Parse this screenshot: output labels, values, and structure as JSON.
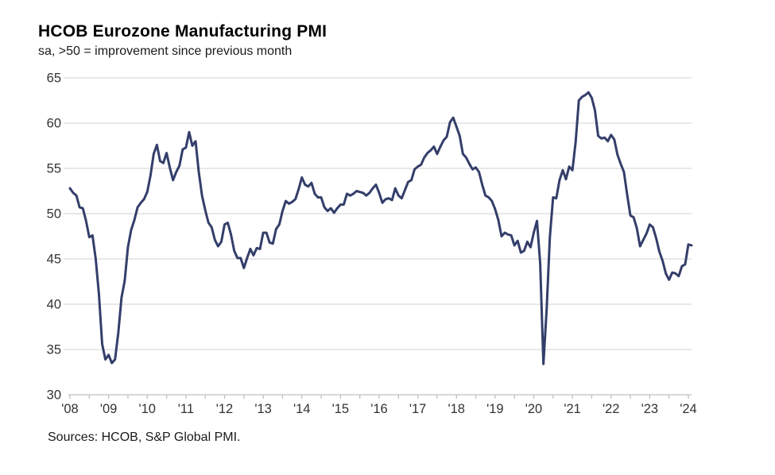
{
  "header": {
    "title": "HCOB Eurozone Manufacturing PMI",
    "subtitle": "sa, >50 = improvement since previous month"
  },
  "footer": {
    "sources": "Sources: HCOB, S&P Global PMI."
  },
  "chart_data": {
    "type": "line",
    "title": "HCOB Eurozone Manufacturing PMI",
    "subtitle": "sa, >50 = improvement since previous month",
    "xlabel": "",
    "ylabel": "",
    "ylim": [
      30,
      65
    ],
    "yticks": [
      30,
      35,
      40,
      45,
      50,
      55,
      60,
      65
    ],
    "x_tick_labels": [
      "'08",
      "'09",
      "'10",
      "'11",
      "'12",
      "'13",
      "'14",
      "'15",
      "'16",
      "'17",
      "'18",
      "'19",
      "'20",
      "'21",
      "'22",
      "'23",
      "'24"
    ],
    "grid": "horizontal-only",
    "legend": "none",
    "colors": {
      "line": "#343E6A",
      "gridline": "#D9D9D9",
      "axis": "#BFBFBF",
      "tick_label": "#333333"
    },
    "series": [
      {
        "name": "Eurozone Manufacturing PMI (sa)",
        "start": "2008-01",
        "frequency": "monthly",
        "values": [
          52.8,
          52.3,
          52.0,
          50.7,
          50.6,
          49.2,
          47.4,
          47.6,
          45.0,
          41.1,
          35.6,
          33.9,
          34.4,
          33.5,
          33.9,
          36.8,
          40.7,
          42.6,
          46.3,
          48.2,
          49.3,
          50.7,
          51.2,
          51.6,
          52.4,
          54.2,
          56.6,
          57.6,
          55.8,
          55.6,
          56.7,
          55.1,
          53.7,
          54.6,
          55.3,
          57.1,
          57.3,
          59.0,
          57.5,
          58.0,
          54.6,
          52.0,
          50.4,
          49.0,
          48.5,
          47.1,
          46.4,
          46.9,
          48.8,
          49.0,
          47.7,
          45.9,
          45.1,
          45.1,
          44.0,
          45.1,
          46.1,
          45.4,
          46.2,
          46.1,
          47.9,
          47.9,
          46.8,
          46.7,
          48.3,
          48.8,
          50.3,
          51.4,
          51.1,
          51.3,
          51.6,
          52.7,
          54.0,
          53.2,
          53.0,
          53.4,
          52.2,
          51.8,
          51.8,
          50.7,
          50.3,
          50.6,
          50.1,
          50.6,
          51.0,
          51.0,
          52.2,
          52.0,
          52.2,
          52.5,
          52.4,
          52.3,
          52.0,
          52.3,
          52.8,
          53.2,
          52.3,
          51.2,
          51.6,
          51.7,
          51.5,
          52.8,
          52.0,
          51.7,
          52.6,
          53.5,
          53.7,
          54.9,
          55.2,
          55.4,
          56.2,
          56.7,
          57.0,
          57.4,
          56.6,
          57.4,
          58.1,
          58.5,
          60.1,
          60.6,
          59.6,
          58.6,
          56.6,
          56.2,
          55.5,
          54.9,
          55.1,
          54.6,
          53.2,
          52.0,
          51.8,
          51.4,
          50.5,
          49.3,
          47.5,
          47.9,
          47.7,
          47.6,
          46.5,
          47.0,
          45.7,
          45.9,
          46.9,
          46.3,
          47.9,
          49.2,
          44.5,
          33.4,
          39.4,
          47.4,
          51.8,
          51.7,
          53.7,
          54.8,
          53.8,
          55.2,
          54.8,
          57.9,
          62.5,
          62.9,
          63.1,
          63.4,
          62.8,
          61.4,
          58.6,
          58.3,
          58.4,
          58.0,
          58.7,
          58.2,
          56.5,
          55.5,
          54.6,
          52.1,
          49.8,
          49.6,
          48.4,
          46.4,
          47.1,
          47.8,
          48.8,
          48.5,
          47.3,
          45.8,
          44.8,
          43.4,
          42.7,
          43.5,
          43.4,
          43.1,
          44.2,
          44.4,
          46.6,
          46.5
        ]
      }
    ]
  }
}
